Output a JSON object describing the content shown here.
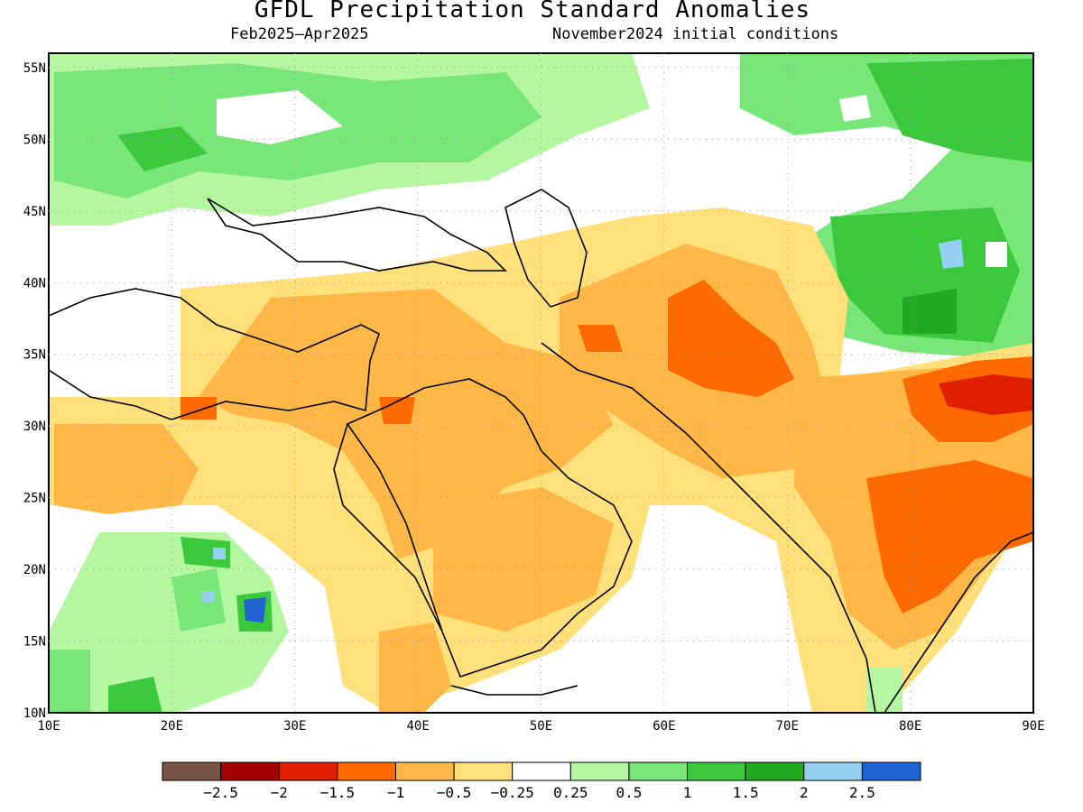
{
  "title": "GFDL Precipitation Standard Anomalies",
  "period": "Feb2025–Apr2025",
  "init": "November2024 initial conditions",
  "lat_labels": [
    "55N",
    "50N",
    "45N",
    "40N",
    "35N",
    "30N",
    "25N",
    "20N",
    "15N",
    "10N"
  ],
  "lon_labels": [
    "10E",
    "20E",
    "30E",
    "40E",
    "50E",
    "60E",
    "70E",
    "80E",
    "90E"
  ],
  "colorbar": {
    "colors": [
      "#7a5545",
      "#a50000",
      "#e01f00",
      "#ff6a00",
      "#ffb847",
      "#ffe07a",
      "#ffffff",
      "#b4f7a0",
      "#78e678",
      "#3cc83c",
      "#22aa22",
      "#96d0f0",
      "#1f64d2"
    ],
    "labels": [
      "−2.5",
      "−2",
      "−1.5",
      "−1",
      "−0.5",
      "−0.25",
      "0.25",
      "0.5",
      "1",
      "1.5",
      "2",
      "2.5"
    ]
  },
  "map": {
    "region": {
      "lon": [
        10,
        90
      ],
      "lat": [
        10,
        56
      ]
    },
    "features": [
      {
        "name": "europe-wet",
        "level": "0.5"
      },
      {
        "name": "central-asia-wet",
        "level": "1.5"
      },
      {
        "name": "middle-east-dry",
        "level": "-1"
      },
      {
        "name": "iran-afghanistan-dry",
        "level": "-1.5"
      },
      {
        "name": "india-dry",
        "level": "-1.5"
      },
      {
        "name": "himalaya-dry",
        "level": "-2"
      },
      {
        "name": "sudan-wet-spots",
        "level": "2.5"
      }
    ]
  }
}
